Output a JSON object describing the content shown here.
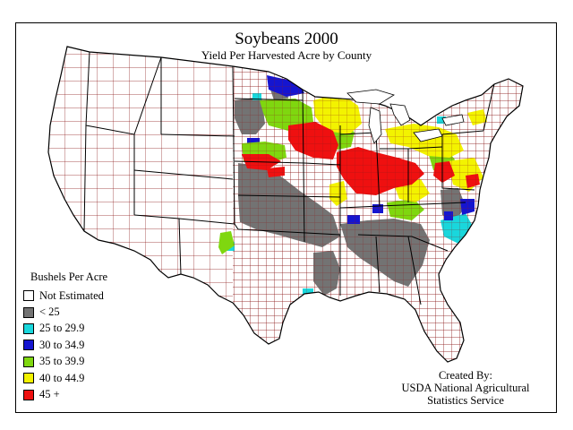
{
  "title": "Soybeans 2000",
  "subtitle": "Yield Per Harvested Acre by County",
  "legend": {
    "title": "Bushels Per Acre",
    "items": [
      {
        "label": "Not Estimated",
        "color": "#ffffff"
      },
      {
        "label": "< 25",
        "color": "#737373"
      },
      {
        "label": "25 to 29.9",
        "color": "#19d7dc"
      },
      {
        "label": "30 to 34.9",
        "color": "#1515d0"
      },
      {
        "label": "35 to 39.9",
        "color": "#7fd70f"
      },
      {
        "label": "40 to 44.9",
        "color": "#f3f300"
      },
      {
        "label": "45 +",
        "color": "#ef1010"
      }
    ]
  },
  "credit": {
    "line1": "Created By:",
    "line2": "USDA National Agricultural",
    "line3": "Statistics Service"
  },
  "colors": {
    "county_border": "#8b1a1a",
    "state_border": "#000000"
  }
}
